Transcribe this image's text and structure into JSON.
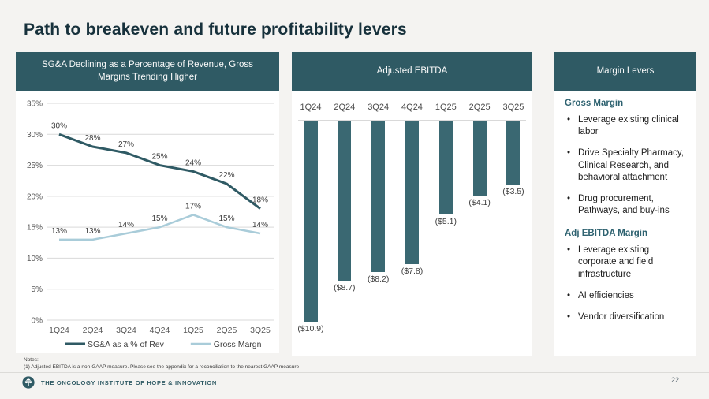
{
  "slide": {
    "title": "Path to breakeven and future profitability levers",
    "page_number": "22",
    "notes_label": "Notes:",
    "notes_text": "(1) Adjusted EBITDA is a non-GAAP measure. Please see the appendix for a reconciliation to the nearest GAAP measure",
    "footer_brand": "THE ONCOLOGY INSTITUTE OF HOPE & INNOVATION"
  },
  "colors": {
    "background": "#F4F3F1",
    "panel_bg": "#FFFFFF",
    "header_teal": "#2F5A64",
    "bar_teal": "#3A6872",
    "sga_line": "#2F5A64",
    "gross_margin_line": "#A9CCD9",
    "gridline": "#D9D9D9",
    "axis_text": "#595959",
    "title_text": "#17313C",
    "section_heading_teal": "#2E6270"
  },
  "panels": {
    "left": {
      "header": "SG&A Declining as a Percentage of Revenue, Gross Margins Trending Higher"
    },
    "middle": {
      "header": "Adjusted EBITDA"
    },
    "right": {
      "header": "Margin Levers",
      "sections": [
        {
          "heading": "Gross Margin",
          "bullets": [
            "Leverage existing clinical labor",
            "Drive Specialty Pharmacy, Clinical Research, and behavioral attachment",
            "Drug procurement, Pathways, and buy-ins"
          ]
        },
        {
          "heading": "Adj EBITDA Margin",
          "bullets": [
            "Leverage existing corporate and field infrastructure",
            "AI efficiencies",
            "Vendor diversification"
          ]
        }
      ]
    }
  },
  "chart_data": [
    {
      "type": "line",
      "title": "SG&A Declining as a Percentage of Revenue, Gross Margins Trending Higher",
      "categories": [
        "1Q24",
        "2Q24",
        "3Q24",
        "4Q24",
        "1Q25",
        "2Q25",
        "3Q25"
      ],
      "series": [
        {
          "name": "SG&A as a % of Rev",
          "values": [
            30,
            28,
            27,
            25,
            24,
            22,
            18
          ],
          "labels": [
            "30%",
            "28%",
            "27%",
            "25%",
            "24%",
            "22%",
            "18%"
          ],
          "color": "#2F5A64",
          "width": 3
        },
        {
          "name": "Gross Margn",
          "values": [
            13,
            13,
            14,
            15,
            17,
            15,
            14
          ],
          "labels": [
            "13%",
            "13%",
            "14%",
            "15%",
            "17%",
            "15%",
            "14%"
          ],
          "color": "#A9CCD9",
          "width": 2.5
        }
      ],
      "xlabel": "",
      "ylabel": "",
      "ylim": [
        0,
        35
      ],
      "ytick_step": 5,
      "ytick_suffix": "%",
      "grid": true,
      "legend_position": "bottom"
    },
    {
      "type": "bar",
      "title": "Adjusted EBITDA",
      "categories": [
        "1Q24",
        "2Q24",
        "3Q24",
        "4Q24",
        "1Q25",
        "2Q25",
        "3Q25"
      ],
      "values": [
        -10.9,
        -8.7,
        -8.2,
        -7.8,
        -5.1,
        -4.1,
        -3.5
      ],
      "labels": [
        "($10.9)",
        "($8.7)",
        "($8.2)",
        "($7.8)",
        "($5.1)",
        "($4.1)",
        "($3.5)"
      ],
      "bar_color": "#3A6872",
      "baseline": 0,
      "ylim": [
        -11.5,
        0
      ],
      "category_labels_position": "top"
    }
  ]
}
